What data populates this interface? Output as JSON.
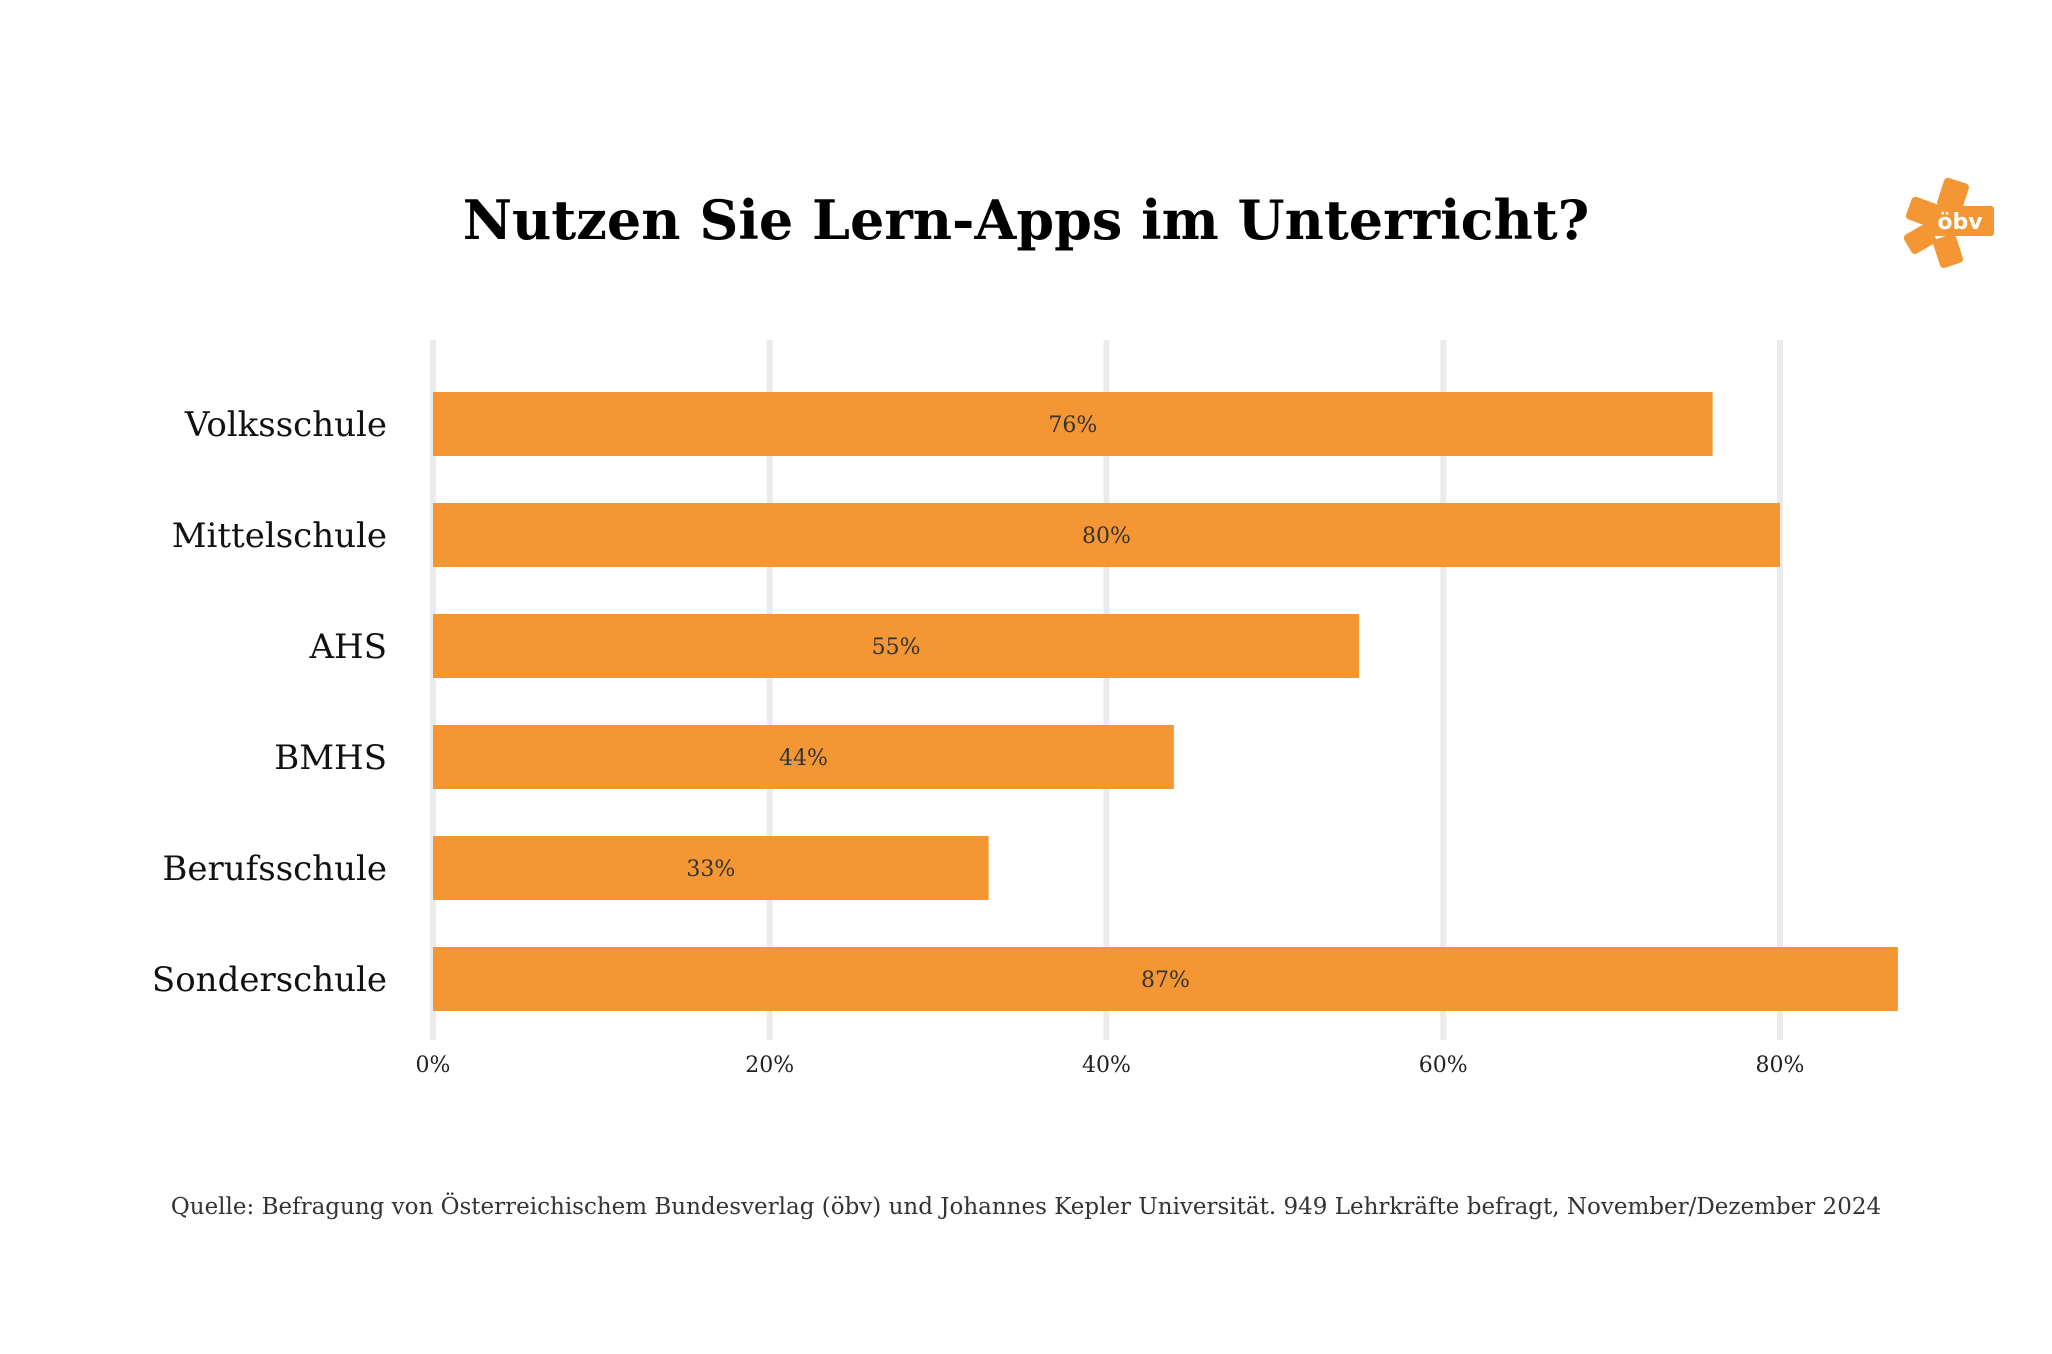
{
  "chart_data": {
    "type": "bar",
    "orientation": "horizontal",
    "title": "Nutzen Sie Lern-Apps im Unterricht?",
    "categories": [
      "Volksschule",
      "Mittelschule",
      "AHS",
      "BMHS",
      "Berufsschule",
      "Sonderschule"
    ],
    "values": [
      76,
      80,
      55,
      44,
      33,
      87
    ],
    "data_labels": [
      "76%",
      "80%",
      "55%",
      "44%",
      "33%",
      "87%"
    ],
    "xlim": [
      0,
      87
    ],
    "x_ticks": [
      0,
      20,
      40,
      60,
      80
    ],
    "x_tick_labels": [
      "0%",
      "20%",
      "40%",
      "60%",
      "80%"
    ],
    "xlabel": "",
    "ylabel": "",
    "grid": "vertical",
    "legend": "none",
    "bar_color": "#F39633",
    "grid_color": "#EBEBEB"
  },
  "source": "Quelle: Befragung von Österreichischem Bundesverlag (öbv) und Johannes Kepler Universität. 949 Lehrkräfte befragt, November/Dezember 2024",
  "logo": {
    "text": "öbv",
    "color": "#F39633",
    "icon": "obv-star-logo-icon"
  }
}
